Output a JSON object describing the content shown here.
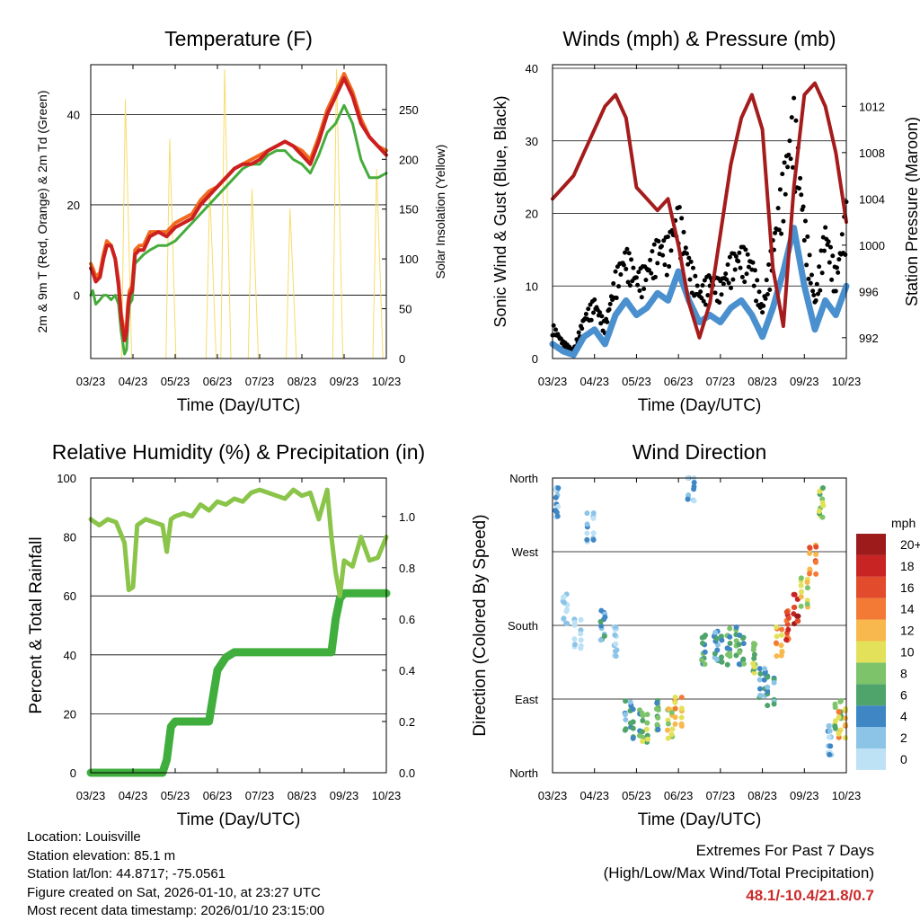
{
  "chart_data": [
    {
      "type": "line",
      "title": "Temperature (F)",
      "xlabel": "Time (Day/UTC)",
      "ylabel": "2m & 9m T (Red, Orange) & 2m Td (Green)",
      "y2label": "Solar Insolation (Yellow)",
      "categories": [
        "03/23",
        "04/23",
        "05/23",
        "06/23",
        "07/23",
        "08/23",
        "09/23",
        "10/23"
      ],
      "yticks": [
        0,
        20,
        40
      ],
      "y2ticks": [
        0,
        50,
        100,
        150,
        200,
        250
      ],
      "ylim": [
        -14,
        51
      ],
      "y2lim": [
        0,
        295
      ],
      "x": [
        0,
        0.05,
        0.12,
        0.22,
        0.3,
        0.38,
        0.48,
        0.58,
        0.66,
        0.72,
        0.8,
        0.85,
        0.88,
        0.92,
        0.98,
        1.05,
        1.15,
        1.25,
        1.4,
        1.6,
        1.8,
        2,
        2.2,
        2.4,
        2.6,
        2.8,
        3,
        3.2,
        3.4,
        3.6,
        3.8,
        4,
        4.2,
        4.4,
        4.6,
        4.8,
        5,
        5.2,
        5.4,
        5.6,
        5.8,
        6,
        6.2,
        6.4,
        6.6,
        6.8,
        7
      ],
      "series": [
        {
          "name": "2m T",
          "color": "#cc1f1f",
          "values": [
            6,
            5,
            3,
            4,
            8,
            11,
            11,
            8,
            2,
            -5,
            -10,
            -8,
            -3,
            0,
            1,
            9,
            10,
            10,
            13,
            14,
            13,
            15,
            16,
            17,
            20,
            22,
            24,
            26,
            28,
            29,
            29,
            30,
            32,
            33,
            34,
            33,
            31,
            29,
            34,
            40,
            44,
            48,
            44,
            38,
            35,
            33,
            31
          ]
        },
        {
          "name": "9m T",
          "color": "#f06a1f",
          "values": [
            7,
            6,
            4,
            5,
            9,
            12,
            11,
            8,
            3,
            -4,
            -9,
            -7,
            -2,
            1,
            2,
            10,
            11,
            11,
            14,
            14,
            14,
            16,
            17,
            18,
            21,
            23,
            24,
            26,
            28,
            29,
            30,
            31,
            32,
            33,
            34,
            33,
            32,
            30,
            35,
            41,
            45,
            49,
            45,
            39,
            35,
            33,
            32
          ]
        },
        {
          "name": "2m Td",
          "color": "#45ac3c",
          "values": [
            0,
            1,
            -2,
            -1,
            0,
            0,
            -1,
            0,
            -2,
            -8,
            -13,
            -12,
            -6,
            -2,
            -1,
            7,
            8,
            9,
            10,
            11,
            11,
            12,
            14,
            16,
            18,
            20,
            22,
            24,
            26,
            28,
            29,
            29,
            31,
            32,
            32,
            30,
            29,
            27,
            31,
            36,
            38,
            42,
            38,
            30,
            26,
            26,
            27
          ]
        }
      ],
      "insolation": {
        "color": "#f7dc6b",
        "x": [
          0.85,
          1.9,
          2.85,
          3.2,
          3.85,
          4.75,
          5.85,
          6.8
        ],
        "values": [
          260,
          220,
          170,
          290,
          170,
          150,
          290,
          190
        ]
      }
    },
    {
      "type": "scatter",
      "title": "Winds (mph) & Pressure (mb)",
      "xlabel": "Time (Day/UTC)",
      "ylabel": "Sonic Wind & Gust (Blue, Black)",
      "y2label": "Station Pressure (Maroon)",
      "categories": [
        "03/23",
        "04/23",
        "05/23",
        "06/23",
        "07/23",
        "08/23",
        "09/23",
        "10/23"
      ],
      "yticks": [
        0,
        10,
        20,
        30,
        40
      ],
      "y2ticks": [
        992,
        996,
        1000,
        1004,
        1008,
        1012
      ],
      "ylim": [
        0,
        40.5
      ],
      "y2lim": [
        990.2,
        1015.6
      ],
      "x": [
        0,
        0.25,
        0.5,
        0.75,
        1,
        1.25,
        1.5,
        1.75,
        2,
        2.25,
        2.5,
        2.75,
        3,
        3.25,
        3.5,
        3.75,
        4,
        4.25,
        4.5,
        4.75,
        5,
        5.25,
        5.5,
        5.75,
        6,
        6.25,
        6.5,
        6.75,
        7
      ],
      "series": [
        {
          "name": "Wind",
          "color": "#4a90cf",
          "values": [
            2,
            1,
            0.5,
            3,
            4,
            2,
            6,
            8,
            6,
            7,
            9,
            8,
            12,
            8,
            5,
            6,
            5,
            7,
            8,
            6,
            3,
            7,
            12,
            18,
            10,
            4,
            8,
            6,
            10
          ]
        },
        {
          "name": "Gust",
          "color": "#000000",
          "values": [
            4,
            2,
            1,
            5,
            7,
            4,
            10,
            13,
            10,
            11,
            14,
            14,
            18,
            12,
            8,
            10,
            9,
            12,
            13,
            12,
            6,
            14,
            22,
            30,
            17,
            7,
            16,
            10,
            18
          ]
        },
        {
          "name": "Pressure",
          "color": "#a51c1c",
          "values": [
            1004,
            1005,
            1006,
            1008,
            1010,
            1012,
            1013,
            1011,
            1005,
            1004,
            1003,
            1004,
            1000,
            995,
            992,
            995,
            1001,
            1007,
            1011,
            1013,
            1010,
            998,
            993,
            1005,
            1013,
            1014,
            1012,
            1008,
            1002
          ]
        }
      ]
    },
    {
      "type": "line",
      "title": "Relative Humidity (%) & Precipitation (in)",
      "xlabel": "Time (Day/UTC)",
      "ylabel": "Percent & Total Rainfall",
      "categories": [
        "03/23",
        "04/23",
        "05/23",
        "06/23",
        "07/23",
        "08/23",
        "09/23",
        "10/23"
      ],
      "yticks": [
        0,
        20,
        40,
        60,
        80,
        100
      ],
      "y2ticks": [
        "0.0",
        "0.2",
        "0.4",
        "0.6",
        "0.8",
        "1.0"
      ],
      "ylim": [
        0,
        100
      ],
      "y2lim": [
        0,
        1.15
      ],
      "x": [
        0,
        0.2,
        0.4,
        0.6,
        0.8,
        0.9,
        1,
        1.1,
        1.3,
        1.5,
        1.7,
        1.8,
        1.9,
        2,
        2.2,
        2.4,
        2.6,
        2.8,
        3,
        3.2,
        3.4,
        3.6,
        3.8,
        4,
        4.2,
        4.4,
        4.6,
        4.8,
        5,
        5.2,
        5.4,
        5.6,
        5.7,
        5.8,
        5.9,
        6,
        6.2,
        6.4,
        6.6,
        6.8,
        7
      ],
      "series": [
        {
          "name": "Relative Humidity",
          "color": "#8ac449",
          "values": [
            86,
            84,
            86,
            85,
            78,
            62,
            63,
            84,
            86,
            85,
            84,
            75,
            86,
            87,
            88,
            87,
            91,
            89,
            92,
            91,
            93,
            92,
            95,
            96,
            95,
            94,
            93,
            96,
            94,
            95,
            86,
            96,
            80,
            68,
            60,
            72,
            70,
            80,
            72,
            73,
            80
          ]
        },
        {
          "name": "Total Precipitation",
          "color": "#3fae3c",
          "values": [
            0,
            0,
            0,
            0,
            0,
            0,
            0,
            0,
            0,
            0,
            0,
            0.05,
            0.18,
            0.2,
            0.2,
            0.2,
            0.2,
            0.2,
            0.4,
            0.45,
            0.47,
            0.47,
            0.47,
            0.47,
            0.47,
            0.47,
            0.47,
            0.47,
            0.47,
            0.47,
            0.47,
            0.47,
            0.47,
            0.6,
            0.68,
            0.7,
            0.7,
            0.7,
            0.7,
            0.7,
            0.7
          ]
        }
      ]
    },
    {
      "type": "scatter",
      "title": "Wind Direction",
      "xlabel": "Time (Day/UTC)",
      "ylabel": "Direction (Colored By Speed)",
      "categories": [
        "03/23",
        "04/23",
        "05/23",
        "06/23",
        "07/23",
        "08/23",
        "09/23",
        "10/23"
      ],
      "yticks": [
        "North",
        "East",
        "South",
        "West",
        "North"
      ],
      "ylim": [
        0,
        360
      ],
      "x": [
        0.1,
        0.3,
        0.6,
        0.9,
        1.2,
        1.5,
        1.8,
        2,
        2.2,
        2.5,
        2.8,
        3,
        3.3,
        3.6,
        3.9,
        4.1,
        4.3,
        4.5,
        4.8,
        5,
        5.2,
        5.4,
        5.6,
        5.8,
        6,
        6.2,
        6.4,
        6.6,
        6.8,
        6.9
      ],
      "values": [
        330,
        200,
        170,
        300,
        180,
        160,
        70,
        60,
        55,
        70,
        60,
        75,
        350,
        150,
        155,
        150,
        160,
        150,
        140,
        110,
        100,
        160,
        180,
        200,
        220,
        260,
        330,
        40,
        70,
        60
      ],
      "speeds": [
        3,
        1,
        0,
        2,
        4,
        1,
        5,
        6,
        8,
        7,
        10,
        12,
        3,
        6,
        4,
        6,
        7,
        6,
        8,
        4,
        5,
        12,
        16,
        18,
        10,
        14,
        9,
        2,
        8,
        12
      ],
      "colorbar": {
        "unit": "mph",
        "labels": [
          "0",
          "2",
          "4",
          "6",
          "8",
          "10",
          "12",
          "14",
          "16",
          "18",
          "20+"
        ],
        "colors": [
          "#bde1f5",
          "#8cc4e8",
          "#3f86c5",
          "#4ea46a",
          "#7cc36a",
          "#e3e15a",
          "#f8b84d",
          "#f37a35",
          "#e24b2b",
          "#c92424",
          "#9e1b1b"
        ]
      }
    }
  ],
  "info": {
    "location": "Location: Louisville",
    "elevation": "Station elevation: 85.1 m",
    "latlon": "Station lat/lon: 44.8717; -75.0561",
    "created": "Figure created on Sat, 2026-01-10, at 23:27 UTC",
    "recent": "Most recent data timestamp: 2026/01/10 23:15:00"
  },
  "extremes": {
    "title": "Extremes For Past 7 Days",
    "subtitle": "(High/Low/Max Wind/Total Precipitation)",
    "values": "48.1/-10.4/21.8/0.7"
  }
}
